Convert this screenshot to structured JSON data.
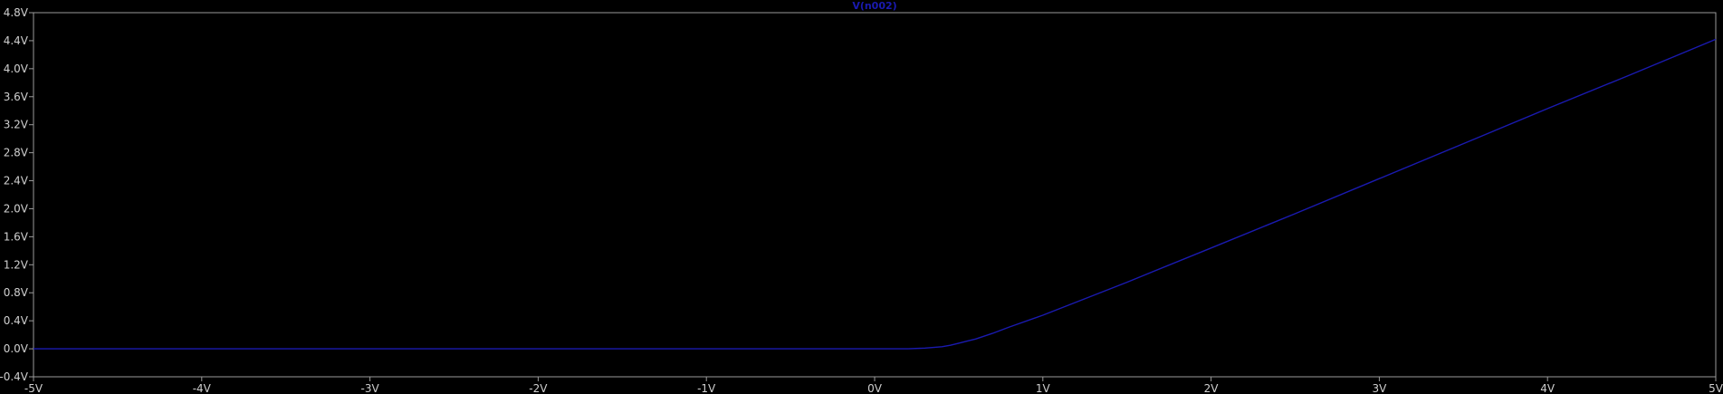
{
  "chart_data": {
    "type": "line",
    "title": "V(n002)",
    "xlabel": "",
    "ylabel": "",
    "xlim": [
      -5,
      5
    ],
    "ylim": [
      -0.4,
      4.8
    ],
    "grid": false,
    "x_ticks": [
      -5,
      -4,
      -3,
      -2,
      -1,
      0,
      1,
      2,
      3,
      4,
      5
    ],
    "x_tick_labels": [
      "-5V",
      "-4V",
      "-3V",
      "-2V",
      "-1V",
      "0V",
      "1V",
      "2V",
      "3V",
      "4V",
      "5V"
    ],
    "y_ticks": [
      -0.4,
      0.0,
      0.4,
      0.8,
      1.2,
      1.6,
      2.0,
      2.4,
      2.8,
      3.2,
      3.6,
      4.0,
      4.4,
      4.8
    ],
    "y_tick_labels": [
      "-0.4V",
      "0.0V",
      "0.4V",
      "0.8V",
      "1.2V",
      "1.6V",
      "2.0V",
      "2.4V",
      "2.8V",
      "3.2V",
      "3.6V",
      "4.0V",
      "4.4V",
      "4.8V"
    ],
    "series": [
      {
        "name": "V(n002)",
        "color": "#1a1ab0",
        "x": [
          -5,
          -4,
          -3,
          -2,
          -1,
          0,
          0.2,
          0.3,
          0.4,
          0.45,
          0.5,
          0.55,
          0.6,
          0.7,
          0.8,
          1.0,
          1.5,
          2.0,
          2.5,
          3.0,
          3.5,
          4.0,
          4.5,
          5.0
        ],
        "y": [
          0,
          0,
          0,
          0,
          0,
          0,
          0.0,
          0.01,
          0.03,
          0.05,
          0.08,
          0.11,
          0.14,
          0.22,
          0.31,
          0.48,
          0.95,
          1.44,
          1.93,
          2.43,
          2.93,
          3.43,
          3.92,
          4.42
        ]
      }
    ]
  },
  "colors": {
    "background": "#000000",
    "frame": "#9a9a9a",
    "tick_text": "#cfcfcf",
    "title": "#1a1ab0"
  }
}
